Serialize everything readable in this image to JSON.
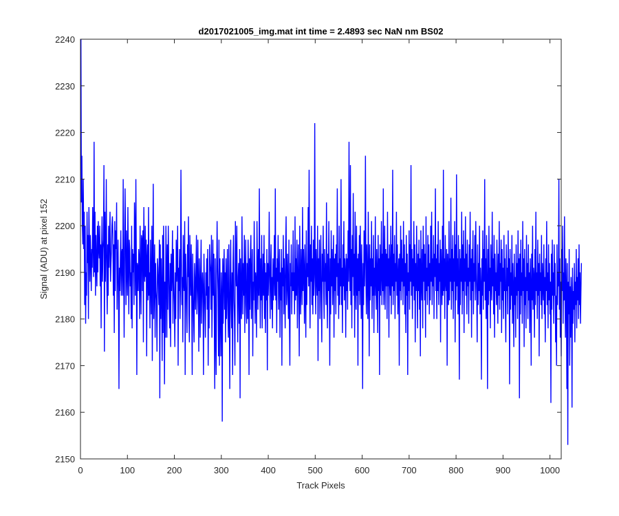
{
  "chart_data": {
    "type": "line",
    "title": "d2017021005_img.mat int time = 2.4893 sec  NaN nm BS02",
    "xlabel": "Track Pixels",
    "ylabel": "Signal (ADU) at pixel 152",
    "xlim": [
      0,
      1024
    ],
    "ylim": [
      2150,
      2240
    ],
    "xticks": [
      0,
      100,
      200,
      300,
      400,
      500,
      600,
      700,
      800,
      900,
      1000
    ],
    "yticks": [
      2150,
      2160,
      2170,
      2180,
      2190,
      2200,
      2210,
      2220,
      2230,
      2240
    ],
    "grid": false,
    "series": [
      {
        "color": "#0000ff",
        "x_start": 1,
        "x_step": 1,
        "values": [
          2240,
          2205,
          2215,
          2200,
          2196,
          2210,
          2195,
          2203,
          2183,
          2200,
          2179,
          2190,
          2185,
          2203,
          2192,
          2198,
          2180,
          2204,
          2196,
          2188,
          2198,
          2193,
          2186,
          2195,
          2191,
          2204,
          2197,
          2189,
          2218,
          2190,
          2203,
          2185,
          2198,
          2192,
          2187,
          2200,
          2190,
          2201,
          2195,
          2193,
          2200,
          2187,
          2196,
          2178,
          2195,
          2202,
          2188,
          2195,
          2197,
          2213,
          2173,
          2203,
          2188,
          2195,
          2210,
          2189,
          2181,
          2196,
          2185,
          2200,
          2191,
          2198,
          2203,
          2188,
          2192,
          2195,
          2200,
          2202,
          2198,
          2185,
          2196,
          2177,
          2201,
          2186,
          2199,
          2195,
          2205,
          2182,
          2190,
          2197,
          2186,
          2165,
          2191,
          2186,
          2193,
          2199,
          2185,
          2194,
          2195,
          2185,
          2210,
          2192,
          2176,
          2193,
          2208,
          2197,
          2183,
          2199,
          2190,
          2185,
          2204,
          2192,
          2181,
          2197,
          2195,
          2187,
          2190,
          2180,
          2200,
          2178,
          2195,
          2190,
          2194,
          2183,
          2205,
          2199,
          2185,
          2210,
          2193,
          2168,
          2192,
          2191,
          2186,
          2195,
          2193,
          2180,
          2200,
          2189,
          2181,
          2198,
          2197,
          2186,
          2199,
          2175,
          2204,
          2191,
          2188,
          2200,
          2189,
          2197,
          2172,
          2193,
          2196,
          2184,
          2204,
          2185,
          2190,
          2178,
          2197,
          2188,
          2181,
          2200,
          2171,
          2192,
          2209,
          2180,
          2187,
          2196,
          2176,
          2192,
          2186,
          2184,
          2173,
          2193,
          2191,
          2187,
          2183,
          2197,
          2163,
          2196,
          2180,
          2193,
          2186,
          2171,
          2198,
          2177,
          2200,
          2187,
          2166,
          2188,
          2176,
          2200,
          2191,
          2176,
          2196,
          2182,
          2200,
          2192,
          2183,
          2178,
          2192,
          2174,
          2194,
          2186,
          2190,
          2199,
          2179,
          2195,
          2188,
          2183,
          2174,
          2190,
          2180,
          2197,
          2188,
          2193,
          2200,
          2170,
          2191,
          2186,
          2195,
          2180,
          2187,
          2212,
          2194,
          2183,
          2189,
          2175,
          2198,
          2188,
          2186,
          2201,
          2168,
          2194,
          2189,
          2183,
          2177,
          2196,
          2189,
          2202,
          2181,
          2175,
          2198,
          2190,
          2185,
          2196,
          2183,
          2168,
          2194,
          2187,
          2180,
          2175,
          2192,
          2188,
          2182,
          2190,
          2198,
          2181,
          2186,
          2197,
          2187,
          2173,
          2193,
          2188,
          2176,
          2190,
          2197,
          2179,
          2186,
          2190,
          2186,
          2168,
          2194,
          2187,
          2182,
          2176,
          2190,
          2185,
          2193,
          2182,
          2195,
          2170,
          2187,
          2178,
          2196,
          2192,
          2190,
          2182,
          2198,
          2176,
          2187,
          2197,
          2185,
          2194,
          2180,
          2165,
          2193,
          2178,
          2168,
          2189,
          2201,
          2191,
          2186,
          2172,
          2197,
          2170,
          2193,
          2181,
          2172,
          2190,
          2185,
          2158,
          2193,
          2179,
          2190,
          2195,
          2182,
          2190,
          2175,
          2193,
          2180,
          2187,
          2195,
          2181,
          2176,
          2196,
          2183,
          2165,
          2189,
          2197,
          2183,
          2178,
          2190,
          2168,
          2192,
          2198,
          2184,
          2180,
          2170,
          2201,
          2191,
          2187,
          2200,
          2185,
          2175,
          2189,
          2192,
          2179,
          2195,
          2163,
          2193,
          2185,
          2180,
          2202,
          2189,
          2181,
          2192,
          2185,
          2198,
          2177,
          2189,
          2197,
          2183,
          2179,
          2192,
          2180,
          2197,
          2190,
          2168,
          2193,
          2182,
          2194,
          2198,
          2180,
          2189,
          2195,
          2172,
          2188,
          2184,
          2201,
          2190,
          2179,
          2190,
          2188,
          2176,
          2201,
          2190,
          2182,
          2195,
          2185,
          2208,
          2188,
          2178,
          2193,
          2184,
          2198,
          2178,
          2187,
          2194,
          2185,
          2198,
          2180,
          2192,
          2177,
          2190,
          2184,
          2195,
          2169,
          2192,
          2185,
          2190,
          2203,
          2188,
          2180,
          2191,
          2196,
          2182,
          2189,
          2178,
          2193,
          2184,
          2189,
          2198,
          2185,
          2208,
          2184,
          2191,
          2177,
          2193,
          2188,
          2198,
          2182,
          2189,
          2195,
          2176,
          2190,
          2184,
          2195,
          2170,
          2191,
          2187,
          2198,
          2181,
          2193,
          2187,
          2178,
          2195,
          2202,
          2183,
          2187,
          2194,
          2185,
          2180,
          2197,
          2181,
          2170,
          2192,
          2187,
          2196,
          2181,
          2190,
          2186,
          2199,
          2186,
          2190,
          2181,
          2202,
          2184,
          2193,
          2185,
          2197,
          2178,
          2188,
          2196,
          2187,
          2172,
          2200,
          2188,
          2181,
          2195,
          2189,
          2183,
          2204,
          2186,
          2195,
          2190,
          2179,
          2196,
          2186,
          2176,
          2199,
          2183,
          2192,
          2189,
          2204,
          2187,
          2212,
          2190,
          2178,
          2196,
          2188,
          2200,
          2183,
          2193,
          2181,
          2197,
          2185,
          2190,
          2222,
          2189,
          2181,
          2195,
          2189,
          2185,
          2200,
          2171,
          2193,
          2186,
          2197,
          2180,
          2190,
          2198,
          2184,
          2175,
          2194,
          2188,
          2200,
          2186,
          2180,
          2195,
          2188,
          2192,
          2183,
          2205,
          2187,
          2178,
          2194,
          2186,
          2201,
          2187,
          2170,
          2193,
          2181,
          2199,
          2187,
          2195,
          2183,
          2191,
          2198,
          2176,
          2193,
          2186,
          2194,
          2181,
          2196,
          2189,
          2208,
          2185,
          2192,
          2180,
          2200,
          2183,
          2193,
          2187,
          2210,
          2183,
          2191,
          2177,
          2196,
          2187,
          2201,
          2184,
          2193,
          2190,
          2176,
          2194,
          2186,
          2193,
          2182,
          2199,
          2188,
          2218,
          2192,
          2186,
          2213,
          2183,
          2195,
          2178,
          2198,
          2189,
          2207,
          2185,
          2194,
          2176,
          2203,
          2190,
          2182,
          2200,
          2185,
          2193,
          2170,
          2194,
          2186,
          2198,
          2183,
          2200,
          2190,
          2180,
          2196,
          2187,
          2165,
          2192,
          2183,
          2199,
          2187,
          2194,
          2215,
          2189,
          2181,
          2196,
          2188,
          2180,
          2203,
          2190,
          2172,
          2196,
          2184,
          2193,
          2187,
          2201,
          2180,
          2193,
          2185,
          2198,
          2177,
          2191,
          2185,
          2202,
          2188,
          2182,
          2195,
          2190,
          2177,
          2198,
          2186,
          2193,
          2168,
          2196,
          2185,
          2190,
          2201,
          2183,
          2194,
          2186,
          2208,
          2183,
          2189,
          2200,
          2182,
          2195,
          2187,
          2194,
          2180,
          2203,
          2187,
          2193,
          2176,
          2196,
          2190,
          2185,
          2200,
          2181,
          2196,
          2187,
          2212,
          2183,
          2194,
          2186,
          2198,
          2180,
          2192,
          2188,
          2203,
          2185,
          2196,
          2181,
          2189,
          2193,
          2170,
          2194,
          2186,
          2200,
          2184,
          2197,
          2188,
          2193,
          2183,
          2201,
          2187,
          2196,
          2181,
          2192,
          2177,
          2198,
          2185,
          2194,
          2168,
          2190,
          2186,
          2199,
          2182,
          2196,
          2188,
          2213,
          2185,
          2195,
          2180,
          2193,
          2187,
          2201,
          2184,
          2196,
          2175,
          2192,
          2186,
          2200,
          2188,
          2178,
          2194,
          2186,
          2197,
          2182,
          2193,
          2172,
          2199,
          2188,
          2184,
          2195,
          2178,
          2200,
          2188,
          2196,
          2184,
          2194,
          2176,
          2202,
          2186,
          2191,
          2183,
          2198,
          2187,
          2196,
          2181,
          2192,
          2184,
          2200,
          2188,
          2203,
          2183,
          2193,
          2187,
          2198,
          2180,
          2194,
          2189,
          2208,
          2186,
          2193,
          2180,
          2196,
          2186,
          2201,
          2183,
          2192,
          2188,
          2197,
          2175,
          2195,
          2190,
          2183,
          2200,
          2185,
          2212,
          2186,
          2193,
          2180,
          2198,
          2188,
          2186,
          2195,
          2170,
          2194,
          2190,
          2183,
          2201,
          2184,
          2193,
          2188,
          2206,
          2182,
          2195,
          2186,
          2198,
          2180,
          2193,
          2188,
          2201,
          2175,
          2196,
          2184,
          2211,
          2187,
          2193,
          2181,
          2198,
          2188,
          2167,
          2195,
          2183,
          2193,
          2188,
          2203,
          2181,
          2196,
          2186,
          2199,
          2177,
          2193,
          2188,
          2202,
          2185,
          2194,
          2181,
          2197,
          2187,
          2191,
          2179,
          2196,
          2188,
          2203,
          2184,
          2193,
          2176,
          2195,
          2186,
          2199,
          2181,
          2192,
          2188,
          2198,
          2184,
          2201,
          2190,
          2185,
          2175,
          2196,
          2183,
          2192,
          2186,
          2200,
          2181,
          2191,
          2187,
          2167,
          2193,
          2185,
          2199,
          2182,
          2195,
          2188,
          2210,
          2184,
          2193,
          2180,
          2198,
          2187,
          2165,
          2195,
          2183,
          2200,
          2186,
          2191,
          2178,
          2196,
          2188,
          2184,
          2203,
          2187,
          2193,
          2181,
          2198,
          2176,
          2194,
          2186,
          2190,
          2183,
          2197,
          2187,
          2179,
          2194,
          2185,
          2201,
          2182,
          2192,
          2188,
          2197,
          2177,
          2195,
          2184,
          2191,
          2180,
          2198,
          2186,
          2193,
          2183,
          2175,
          2196,
          2186,
          2191,
          2181,
          2199,
          2187,
          2193,
          2166,
          2195,
          2182,
          2190,
          2185,
          2198,
          2179,
          2192,
          2186,
          2174,
          2194,
          2183,
          2189,
          2176,
          2196,
          2185,
          2192,
          2180,
          2199,
          2186,
          2193,
          2163,
          2194,
          2181,
          2197,
          2185,
          2190,
          2179,
          2201,
          2186,
          2193,
          2174,
          2195,
          2183,
          2189,
          2178,
          2198,
          2186,
          2192,
          2180,
          2196,
          2184,
          2190,
          2177,
          2193,
          2187,
          2170,
          2194,
          2184,
          2200,
          2182,
          2191,
          2189,
          2176,
          2195,
          2183,
          2203,
          2186,
          2190,
          2180,
          2197,
          2185,
          2192,
          2172,
          2194,
          2186,
          2190,
          2183,
          2198,
          2180,
          2192,
          2187,
          2184,
          2196,
          2181,
          2189,
          2175,
          2193,
          2186,
          2201,
          2183,
          2190,
          2178,
          2196,
          2184,
          2192,
          2181,
          2188,
          2162,
          2194,
          2182,
          2197,
          2185,
          2190,
          2179,
          2196,
          2185,
          2192,
          2175,
          2185,
          2170,
          2196,
          2183,
          2190,
          2187,
          2210,
          2182,
          2193,
          2176,
          2188,
          2172,
          2195,
          2186,
          2200,
          2179,
          2190,
          2184,
          2202,
          2185,
          2176,
          2193,
          2186,
          2165,
          2192,
          2153,
          2188,
          2181,
          2195,
          2170,
          2187,
          2176,
          2189,
          2185,
          2161,
          2191,
          2179,
          2186,
          2182,
          2192,
          2175,
          2188,
          2183,
          2195,
          2178,
          2189,
          2184,
          2193,
          2180,
          2196,
          2183,
          2190,
          2179,
          2186,
          2192
        ]
      }
    ]
  }
}
